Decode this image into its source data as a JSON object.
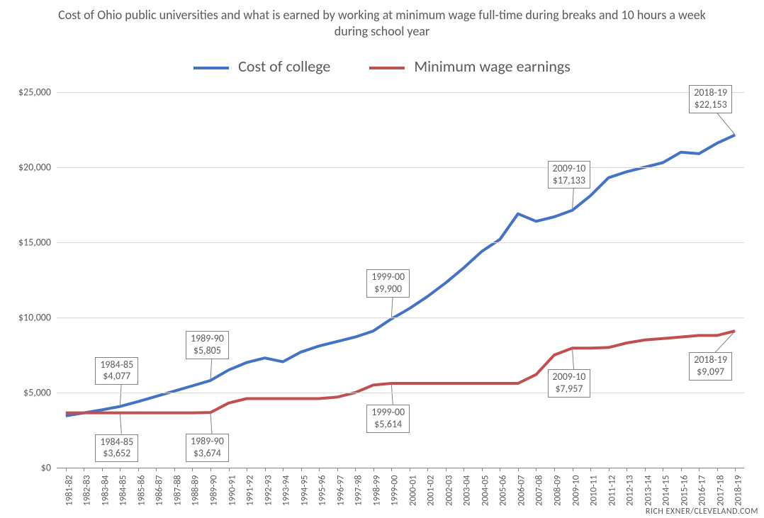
{
  "chart": {
    "type": "line",
    "title": "Cost of Ohio public universities and what is earned by working at minimum wage full-time during breaks and 10 hours a week during school year",
    "title_fontsize": 18,
    "title_color": "#595959",
    "background_color": "#ffffff",
    "grid_color": "#d9d9d9",
    "axis_color": "#808080",
    "tick_label_color": "#595959",
    "tick_fontsize": 14,
    "legend": {
      "fontsize": 22,
      "items": [
        {
          "label": "Cost of college",
          "color": "#4472c4"
        },
        {
          "label": "Minimum wage earnings",
          "color": "#c0504d"
        }
      ]
    },
    "y": {
      "min": 0,
      "max": 25000,
      "tick_step": 5000,
      "prefix": "$",
      "labels": [
        "$0",
        "$5,000",
        "$10,000",
        "$15,000",
        "$20,000",
        "$25,000"
      ]
    },
    "x": {
      "categories": [
        "1981-82",
        "1982-83",
        "1983-84",
        "1984-85",
        "1985-86",
        "1986-87",
        "1987-88",
        "1988-89",
        "1989-90",
        "1990-91",
        "1991-92",
        "1992-93",
        "1993-94",
        "1994-95",
        "1995-96",
        "1996-97",
        "1997-98",
        "1998-99",
        "1999-00",
        "2000-01",
        "2001-02",
        "2002-03",
        "2003-04",
        "2004-05",
        "2005-06",
        "2006-07",
        "2007-08",
        "2008-09",
        "2009-10",
        "2010-11",
        "2011-12",
        "2012-13",
        "2013-14",
        "2014-15",
        "2015-16",
        "2016-17",
        "2017-18",
        "2018-19"
      ]
    },
    "series": [
      {
        "name": "Cost of college",
        "color": "#4472c4",
        "line_width": 4,
        "values": [
          3450,
          3650,
          3850,
          4077,
          4400,
          4750,
          5100,
          5450,
          5805,
          6500,
          7000,
          7300,
          7050,
          7700,
          8100,
          8400,
          8700,
          9100,
          9900,
          10600,
          11400,
          12300,
          13300,
          14400,
          15200,
          16900,
          16400,
          16700,
          17133,
          18100,
          19300,
          19700,
          20000,
          20300,
          21000,
          20900,
          21600,
          22153
        ]
      },
      {
        "name": "Minimum wage earnings",
        "color": "#c0504d",
        "line_width": 4,
        "values": [
          3652,
          3652,
          3652,
          3652,
          3652,
          3652,
          3652,
          3652,
          3674,
          4300,
          4600,
          4600,
          4600,
          4600,
          4600,
          4700,
          5000,
          5500,
          5614,
          5614,
          5614,
          5614,
          5614,
          5614,
          5614,
          5614,
          6200,
          7500,
          7957,
          7957,
          8000,
          8300,
          8500,
          8600,
          8700,
          8800,
          8800,
          9097
        ]
      }
    ],
    "callouts": [
      {
        "series": 0,
        "idx": 3,
        "year": "1984-85",
        "value_label": "$4,077",
        "pos": "above"
      },
      {
        "series": 1,
        "idx": 3,
        "year": "1984-85",
        "value_label": "$3,652",
        "pos": "below"
      },
      {
        "series": 0,
        "idx": 8,
        "year": "1989-90",
        "value_label": "$5,805",
        "pos": "above"
      },
      {
        "series": 1,
        "idx": 8,
        "year": "1989-90",
        "value_label": "$3,674",
        "pos": "below"
      },
      {
        "series": 0,
        "idx": 18,
        "year": "1999-00",
        "value_label": "$9,900",
        "pos": "above"
      },
      {
        "series": 1,
        "idx": 18,
        "year": "1999-00",
        "value_label": "$5,614",
        "pos": "below"
      },
      {
        "series": 0,
        "idx": 28,
        "year": "2009-10",
        "value_label": "$17,133",
        "pos": "above"
      },
      {
        "series": 1,
        "idx": 28,
        "year": "2009-10",
        "value_label": "$7,957",
        "pos": "below"
      },
      {
        "series": 0,
        "idx": 37,
        "year": "2018-19",
        "value_label": "$22,153",
        "pos": "above"
      },
      {
        "series": 1,
        "idx": 37,
        "year": "2018-19",
        "value_label": "$9,097",
        "pos": "below"
      }
    ],
    "credit": "RICH EXNER/CLEVELAND.COM"
  }
}
